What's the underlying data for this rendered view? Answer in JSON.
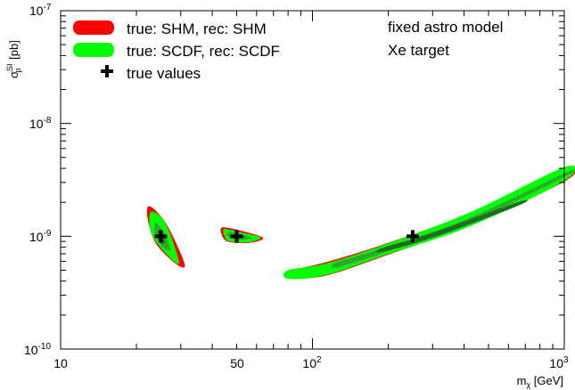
{
  "chart_data": {
    "type": "contour",
    "x_scale": "log",
    "y_scale": "log",
    "xlim": [
      10,
      1000
    ],
    "ylim": [
      1e-10,
      1e-07
    ],
    "xlabel": {
      "main": "m",
      "sub": "χ",
      "unit": " [GeV]"
    },
    "ylabel": {
      "main": "σ",
      "sup": "SI",
      "sub": "p",
      "unit": " [pb]"
    },
    "x_tick_labels": [
      {
        "value": 10,
        "label": "10"
      },
      {
        "value": 50,
        "label": "50"
      },
      {
        "value": 100,
        "base": "10",
        "exp": "2"
      },
      {
        "value": 1000,
        "base": "10",
        "exp": "3"
      }
    ],
    "y_tick_labels": [
      {
        "value": 1e-10,
        "base": "10",
        "exp": "-10"
      },
      {
        "value": 1e-09,
        "base": "10",
        "exp": "-9"
      },
      {
        "value": 1e-08,
        "base": "10",
        "exp": "-8"
      },
      {
        "value": 1e-07,
        "base": "10",
        "exp": "-7"
      }
    ],
    "legend_position": "top-left",
    "legend": [
      {
        "label": "true: SHM, rec: SHM",
        "kind": "box",
        "color": "#ff0000"
      },
      {
        "label": "true: SCDF, rec: SCDF",
        "kind": "box",
        "color": "#00ff00"
      },
      {
        "label": "true values",
        "kind": "marker",
        "color": "#000000"
      }
    ],
    "annotations": [
      "fixed astro model",
      "Xe target"
    ],
    "true_values": [
      {
        "mass_GeV": 25,
        "sigma_pb": 1e-09
      },
      {
        "mass_GeV": 50,
        "sigma_pb": 1e-09
      },
      {
        "mass_GeV": 250,
        "sigma_pb": 1e-09
      }
    ],
    "regions": [
      {
        "series": "true: SHM, rec: SHM",
        "level": "outer",
        "color": "#ff0000",
        "points": [
          [
            22.5,
            1.85e-09
          ],
          [
            26.2,
            1.3e-09
          ],
          [
            31,
            5.8e-10
          ],
          [
            29,
            5.6e-10
          ],
          [
            24,
            8.5e-10
          ],
          [
            22.2,
            1.4e-09
          ]
        ]
      },
      {
        "series": "true: SCDF, rec: SCDF",
        "level": "outer",
        "color": "#00ff00",
        "points": [
          [
            23.0,
            1.65e-09
          ],
          [
            26.0,
            1.32e-09
          ],
          [
            29.5,
            6e-10
          ],
          [
            27.5,
            6.3e-10
          ],
          [
            23.5,
            9.5e-10
          ],
          [
            22.5,
            1.3e-09
          ]
        ]
      },
      {
        "series": "true: SCDF, rec: SCDF",
        "level": "inner",
        "color": "#2fa82f",
        "points": [
          [
            23.8,
            1.32e-09
          ],
          [
            26.0,
            1.05e-09
          ],
          [
            27.2,
            7.6e-10
          ],
          [
            25.6,
            7.9e-10
          ],
          [
            23.8,
            1e-09
          ]
        ]
      },
      {
        "series": "true: SCDF, rec: SCDF",
        "level": "core",
        "color": "#1e6e1e",
        "points": [
          [
            24.5,
            1.12e-09
          ],
          [
            25.6,
            9.7e-10
          ],
          [
            25.9,
            8.6e-10
          ],
          [
            24.6,
            9e-10
          ]
        ]
      },
      {
        "series": "true: SHM, rec: SHM",
        "level": "outer",
        "color": "#ff0000",
        "points": [
          [
            44,
            1.2e-09
          ],
          [
            52,
            1.12e-09
          ],
          [
            62,
            1e-09
          ],
          [
            63,
            9.3e-10
          ],
          [
            55,
            8.7e-10
          ],
          [
            46,
            9e-10
          ],
          [
            43.5,
            1.05e-09
          ]
        ]
      },
      {
        "series": "true: SCDF, rec: SCDF",
        "level": "outer",
        "color": "#00ff00",
        "points": [
          [
            44.8,
            1.16e-09
          ],
          [
            52,
            1.08e-09
          ],
          [
            61,
            1e-09
          ],
          [
            61.5,
            9.4e-10
          ],
          [
            54,
            8.8e-10
          ],
          [
            46.5,
            9.1e-10
          ],
          [
            44.5,
            1.04e-09
          ]
        ]
      },
      {
        "series": "true: SCDF, rec: SCDF",
        "level": "inner",
        "color": "#2fa82f",
        "points": [
          [
            46.5,
            1.08e-09
          ],
          [
            52,
            1.04e-09
          ],
          [
            57,
            9.8e-10
          ],
          [
            55,
            9.4e-10
          ],
          [
            49,
            9.4e-10
          ],
          [
            46,
            1e-09
          ]
        ]
      },
      {
        "series": "true: SCDF, rec: SCDF",
        "level": "core",
        "color": "#1e6e1e",
        "points": [
          [
            48.5,
            1.03e-09
          ],
          [
            53,
            1.01e-09
          ],
          [
            53,
            9.7e-10
          ],
          [
            48.5,
            9.7e-10
          ]
        ]
      },
      {
        "series": "true: SHM, rec: SHM",
        "level": "outer",
        "color": "#ff0000",
        "points": [
          [
            82,
            4.95e-10
          ],
          [
            112,
            5.85e-10
          ],
          [
            190,
            8.4e-10
          ],
          [
            420,
            1.6e-09
          ],
          [
            1000,
            3.8e-09
          ],
          [
            1000,
            3.05e-09
          ],
          [
            420,
            1.25e-09
          ],
          [
            190,
            6.6e-10
          ],
          [
            112,
            4.45e-10
          ],
          [
            82,
            4.3e-10
          ]
        ]
      },
      {
        "series": "true: SCDF, rec: SCDF",
        "level": "outer",
        "color": "#00ff00",
        "points": [
          [
            80,
            5e-10
          ],
          [
            112,
            5.7e-10
          ],
          [
            190,
            8.3e-10
          ],
          [
            420,
            1.62e-09
          ],
          [
            1000,
            4.1e-09
          ],
          [
            1000,
            3.1e-09
          ],
          [
            420,
            1.22e-09
          ],
          [
            190,
            6.7e-10
          ],
          [
            112,
            4.5e-10
          ],
          [
            80,
            4.2e-10
          ]
        ]
      },
      {
        "series": "true: SCDF, rec: SCDF",
        "level": "inner",
        "color": "#2fa82f",
        "points": [
          [
            125,
            5.9e-10
          ],
          [
            190,
            7.8e-10
          ],
          [
            420,
            1.45e-09
          ],
          [
            1000,
            3.6e-09
          ],
          [
            1000,
            3.35e-09
          ],
          [
            420,
            1.33e-09
          ],
          [
            190,
            7.1e-10
          ],
          [
            125,
            5.3e-10
          ]
        ]
      },
      {
        "series": "true: SCDF, rec: SCDF",
        "level": "core",
        "color": "#1e6e1e",
        "points": [
          [
            190,
            7.9e-10
          ],
          [
            300,
            1.07e-09
          ],
          [
            650,
            2e-09
          ],
          [
            650,
            1.85e-09
          ],
          [
            300,
            9.7e-10
          ],
          [
            190,
            7.3e-10
          ]
        ]
      }
    ]
  }
}
